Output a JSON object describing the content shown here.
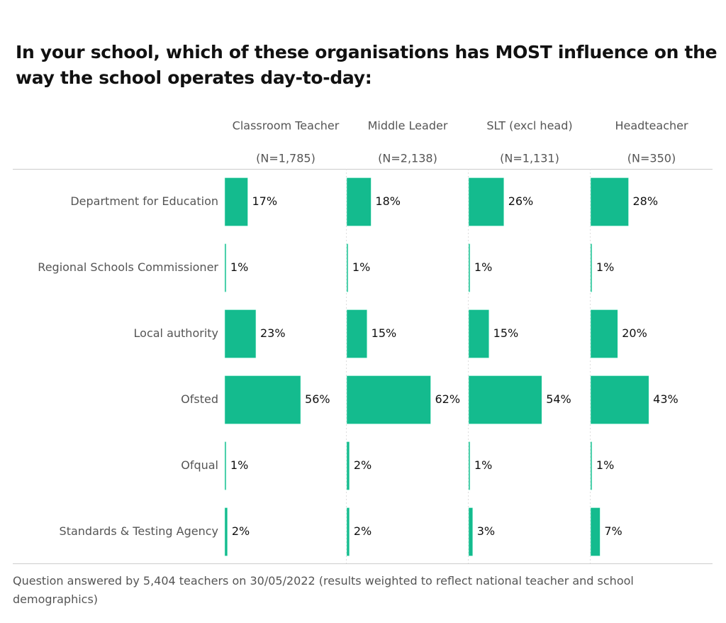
{
  "chart_data": {
    "type": "bar",
    "title": "In your school, which of these organisations has MOST influence on the way the school operates day-to-day:",
    "categories": [
      "Department for Education",
      "Regional Schools Commissioner",
      "Local authority",
      "Ofsted",
      "Ofqual",
      "Standards & Testing Agency"
    ],
    "xlim": [
      0,
      90
    ],
    "color": "#14bb8e",
    "series": [
      {
        "name": "Classroom Teacher",
        "n_label": "(N=1,785)",
        "values": [
          17,
          1,
          23,
          56,
          1,
          2
        ],
        "value_labels": [
          "17%",
          "1%",
          "23%",
          "56%",
          "1%",
          "2%"
        ]
      },
      {
        "name": "Middle Leader",
        "n_label": "(N=2,138)",
        "values": [
          18,
          1,
          15,
          62,
          2,
          2
        ],
        "value_labels": [
          "18%",
          "1%",
          "15%",
          "62%",
          "2%",
          "2%"
        ]
      },
      {
        "name": "SLT (excl head)",
        "n_label": "(N=1,131)",
        "values": [
          26,
          1,
          15,
          54,
          1,
          3
        ],
        "value_labels": [
          "26%",
          "1%",
          "15%",
          "54%",
          "1%",
          "3%"
        ]
      },
      {
        "name": "Headteacher",
        "n_label": "(N=350)",
        "values": [
          28,
          1,
          20,
          43,
          1,
          7
        ],
        "value_labels": [
          "28%",
          "1%",
          "20%",
          "43%",
          "1%",
          "7%"
        ]
      }
    ],
    "note": "Question answered by 5,404 teachers on 30/05/2022 (results weighted to reflect national teacher and school demographics)"
  }
}
